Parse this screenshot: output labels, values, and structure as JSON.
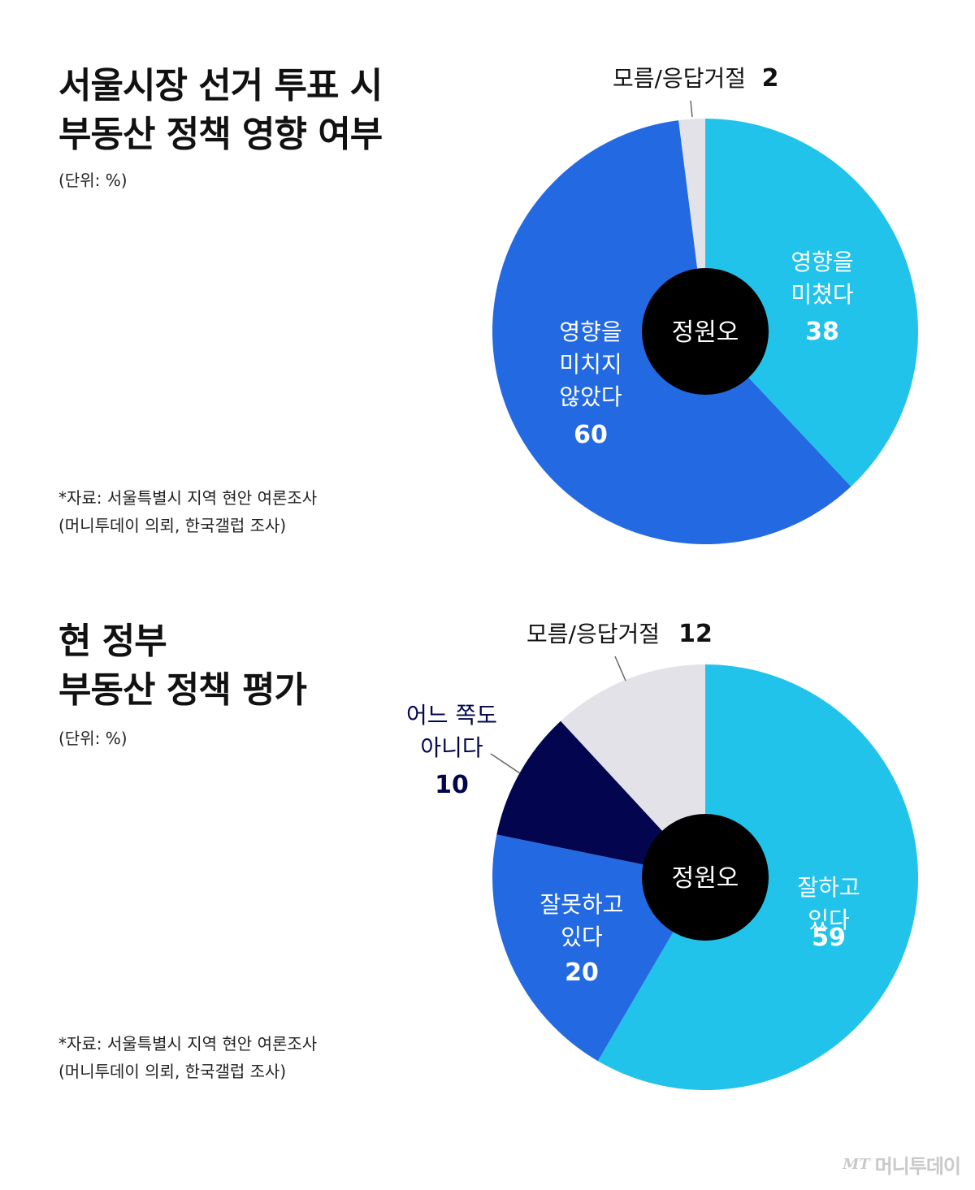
{
  "charts": [
    {
      "title_line1": "서울시장 선거 투표 시",
      "title_line2": "부동산 정책 영향 여부",
      "unit": "(단위: %)",
      "source_line1": "*자료: 서울특별시 지역 현안 여론조사",
      "source_line2": "(머니투데이 의뢰, 한국갤럽 조사)",
      "center_label": "정원오"
    },
    {
      "title_line1": "현 정부",
      "title_line2": "부동산 정책 평가",
      "unit": "(단위: %)",
      "source_line1": "*자료: 서울특별시 지역 현안 여론조사",
      "source_line2": "(머니투데이 의뢰, 한국갤럽 조사)",
      "center_label": "정원오"
    }
  ],
  "chart_data": [
    {
      "type": "pie",
      "title": "서울시장 선거 투표 시 부동산 정책 영향 여부",
      "unit": "%",
      "slices": [
        {
          "label": "영향을 미쳤다",
          "value": 38,
          "color": "#22C3EA"
        },
        {
          "label": "영향을 미치지 않았다",
          "value": 60,
          "color": "#236AE2"
        },
        {
          "label": "모름/응답거절",
          "value": 2,
          "color": "#E2E2E8"
        }
      ]
    },
    {
      "type": "pie",
      "title": "현 정부 부동산 정책 평가",
      "unit": "%",
      "slices": [
        {
          "label": "잘하고 있다",
          "value": 59,
          "color": "#22C3EA"
        },
        {
          "label": "잘못하고 있다",
          "value": 20,
          "color": "#236AE2"
        },
        {
          "label": "어느 쪽도 아니다",
          "value": 10,
          "color": "#03064F"
        },
        {
          "label": "모름/응답거절",
          "value": 12,
          "color": "#E2E2E8"
        }
      ]
    }
  ],
  "logo": {
    "mark": "MT",
    "name": "머니투데이"
  }
}
